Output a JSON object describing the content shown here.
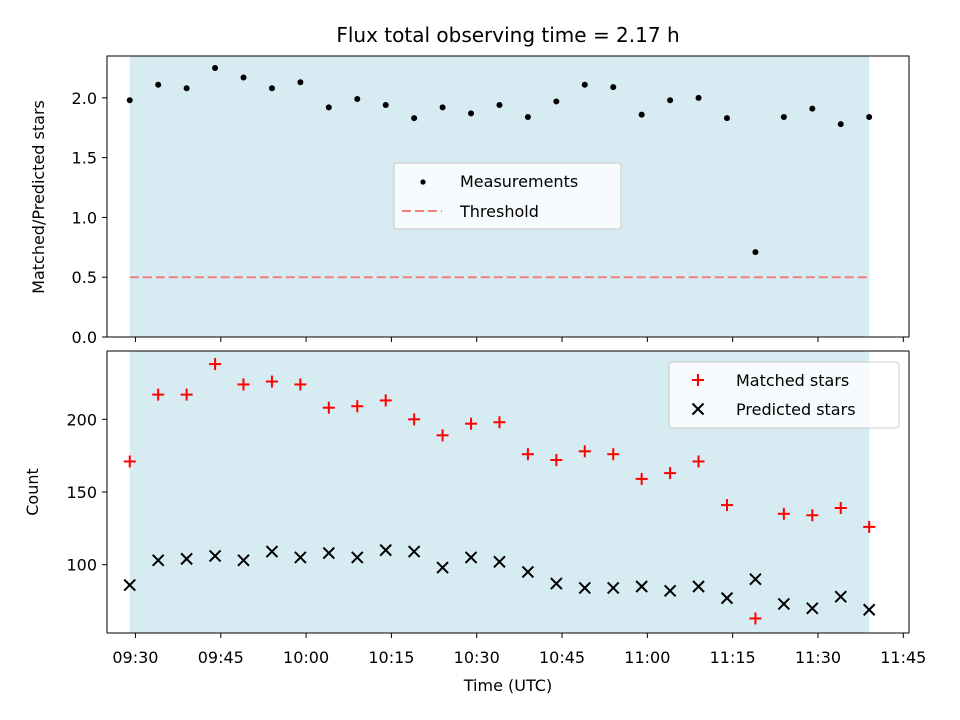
{
  "title": "Flux total observing time = 2.17 h",
  "colors": {
    "shade": "#add8e6",
    "threshold": "#f08080",
    "matched": "#ff0000",
    "predicted": "#000000",
    "measurement": "#000000"
  },
  "chart_data": [
    {
      "type": "scatter",
      "panel": "top",
      "ylabel": "Matched/Predicted stars",
      "ylim": [
        0,
        2.35
      ],
      "yticks": [
        "0.0",
        "0.5",
        "1.0",
        "1.5",
        "2.0"
      ],
      "shaded_range": [
        "09:29",
        "11:39"
      ],
      "legend": {
        "placement": "center",
        "entries": [
          "Measurements",
          "Threshold"
        ]
      },
      "x": [
        "09:29",
        "09:34",
        "09:39",
        "09:44",
        "09:49",
        "09:54",
        "09:59",
        "10:04",
        "10:09",
        "10:14",
        "10:19",
        "10:24",
        "10:29",
        "10:34",
        "10:39",
        "10:44",
        "10:49",
        "10:54",
        "10:59",
        "11:04",
        "11:09",
        "11:14",
        "11:19",
        "11:24",
        "11:29",
        "11:34",
        "11:39"
      ],
      "series": [
        {
          "name": "Measurements",
          "values": [
            1.98,
            2.11,
            2.08,
            2.25,
            2.17,
            2.08,
            2.13,
            1.92,
            1.99,
            1.94,
            1.83,
            1.92,
            1.87,
            1.94,
            1.84,
            1.97,
            2.11,
            2.09,
            1.86,
            1.98,
            2.0,
            1.83,
            0.71,
            1.84,
            1.91,
            1.78,
            1.84
          ]
        },
        {
          "name": "Threshold",
          "value": 0.5,
          "range": [
            "09:29",
            "11:39"
          ]
        }
      ]
    },
    {
      "type": "scatter",
      "panel": "bottom",
      "ylabel": "Count",
      "xlabel": "Time (UTC)",
      "ylim": [
        53,
        247
      ],
      "yticks": [
        "100",
        "150",
        "200"
      ],
      "xlim": [
        "09:25",
        "11:46"
      ],
      "xticks": [
        "09:30",
        "09:45",
        "10:00",
        "10:15",
        "10:30",
        "10:45",
        "11:00",
        "11:15",
        "11:30",
        "11:45"
      ],
      "shaded_range": [
        "09:29",
        "11:39"
      ],
      "legend": {
        "placement": "top-right",
        "entries": [
          "Matched stars",
          "Predicted stars"
        ]
      },
      "x": [
        "09:29",
        "09:34",
        "09:39",
        "09:44",
        "09:49",
        "09:54",
        "09:59",
        "10:04",
        "10:09",
        "10:14",
        "10:19",
        "10:24",
        "10:29",
        "10:34",
        "10:39",
        "10:44",
        "10:49",
        "10:54",
        "10:59",
        "11:04",
        "11:09",
        "11:14",
        "11:19",
        "11:24",
        "11:29",
        "11:34",
        "11:39"
      ],
      "series": [
        {
          "name": "Matched stars",
          "values": [
            171,
            217,
            217,
            238,
            224,
            226,
            224,
            208,
            209,
            213,
            200,
            189,
            197,
            198,
            176,
            172,
            178,
            176,
            159,
            163,
            171,
            141,
            63,
            135,
            134,
            139,
            126
          ]
        },
        {
          "name": "Predicted stars",
          "values": [
            86,
            103,
            104,
            106,
            103,
            109,
            105,
            108,
            105,
            110,
            109,
            98,
            105,
            102,
            95,
            87,
            84,
            84,
            85,
            82,
            85,
            77,
            90,
            73,
            70,
            78,
            69
          ]
        }
      ]
    }
  ]
}
